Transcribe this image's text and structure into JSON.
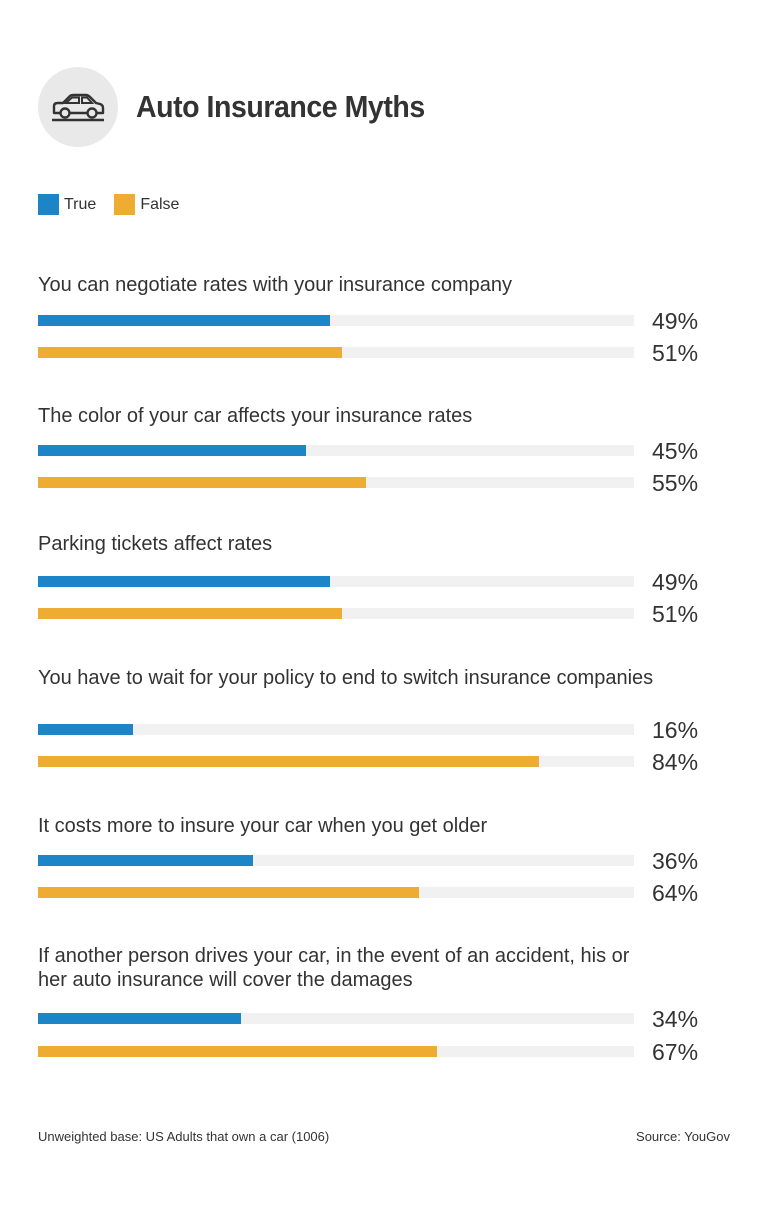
{
  "title": "Auto Insurance Myths",
  "icon": "car-icon",
  "colors": {
    "true": "#1c85c8",
    "false": "#eeac33",
    "track": "#f1f1f1"
  },
  "chart_data": {
    "type": "bar",
    "orientation": "horizontal",
    "title": "Auto Insurance Myths",
    "legend": [
      "True",
      "False"
    ],
    "legend_position": "top-left",
    "xlim": [
      0,
      100
    ],
    "unit": "%",
    "categories": [
      "You can negotiate rates with your insurance company",
      "The color of your car affects your insurance rates",
      "Parking tickets affect rates",
      "You have to wait for your policy to end to switch insurance companies",
      "It costs more to insure your car when you get older",
      "If another person drives your car, in the event of an accident, his or her auto insurance will cover the damages"
    ],
    "series": [
      {
        "name": "True",
        "values": [
          49,
          45,
          49,
          16,
          36,
          34
        ],
        "labels": [
          "49%",
          "45%",
          "49%",
          "16%",
          "36%",
          "34%"
        ]
      },
      {
        "name": "False",
        "values": [
          51,
          55,
          51,
          84,
          64,
          67
        ],
        "labels": [
          "51%",
          "55%",
          "51%",
          "84%",
          "64%",
          "67%"
        ]
      }
    ]
  },
  "footer": {
    "base": "Unweighted base: US Adults that own a car (1006)",
    "source": "Source: YouGov"
  }
}
